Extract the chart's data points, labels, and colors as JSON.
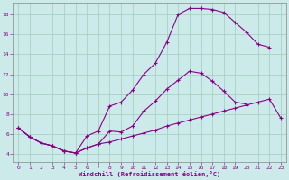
{
  "background_color": "#cdeaea",
  "grid_color": "#a0ccbb",
  "line_color": "#880088",
  "xlabel": "Windchill (Refroidissement éolien,°C)",
  "xlim": [
    -0.5,
    23.5
  ],
  "ylim": [
    3.2,
    19.2
  ],
  "yticks": [
    4,
    6,
    8,
    10,
    12,
    14,
    16,
    18
  ],
  "xticks": [
    0,
    1,
    2,
    3,
    4,
    5,
    6,
    7,
    8,
    9,
    10,
    11,
    12,
    13,
    14,
    15,
    16,
    17,
    18,
    19,
    20,
    21,
    22,
    23
  ],
  "curve1_x": [
    0,
    1,
    2,
    3,
    4,
    5,
    6,
    7,
    8,
    9,
    10,
    11,
    12,
    13,
    14,
    15,
    16,
    17,
    18,
    19,
    20,
    21,
    22
  ],
  "curve1_y": [
    6.6,
    5.7,
    5.1,
    4.8,
    4.3,
    4.1,
    5.8,
    6.3,
    8.8,
    9.2,
    10.4,
    12.0,
    13.1,
    15.2,
    18.0,
    18.6,
    18.6,
    18.5,
    18.2,
    17.2,
    16.2,
    15.0,
    14.7
  ],
  "curve2_x": [
    0,
    1,
    2,
    3,
    4,
    5,
    6,
    7,
    8,
    9,
    10,
    11,
    12,
    13,
    14,
    15,
    16,
    17,
    18,
    19,
    20
  ],
  "curve2_y": [
    6.6,
    5.7,
    5.1,
    4.8,
    4.3,
    4.1,
    4.6,
    5.0,
    6.3,
    6.2,
    6.8,
    8.3,
    9.3,
    10.5,
    11.4,
    12.3,
    12.1,
    11.3,
    10.3,
    9.2,
    9.0
  ],
  "curve3_x": [
    0,
    1,
    2,
    3,
    4,
    5,
    6,
    7,
    8,
    9,
    10,
    11,
    12,
    13,
    14,
    15,
    16,
    17,
    18,
    19,
    20,
    21,
    22,
    23
  ],
  "curve3_y": [
    6.6,
    5.7,
    5.1,
    4.8,
    4.3,
    4.1,
    4.6,
    5.0,
    5.2,
    5.5,
    5.8,
    6.1,
    6.4,
    6.8,
    7.1,
    7.4,
    7.7,
    8.0,
    8.3,
    8.6,
    8.9,
    9.2,
    9.5,
    7.6
  ]
}
